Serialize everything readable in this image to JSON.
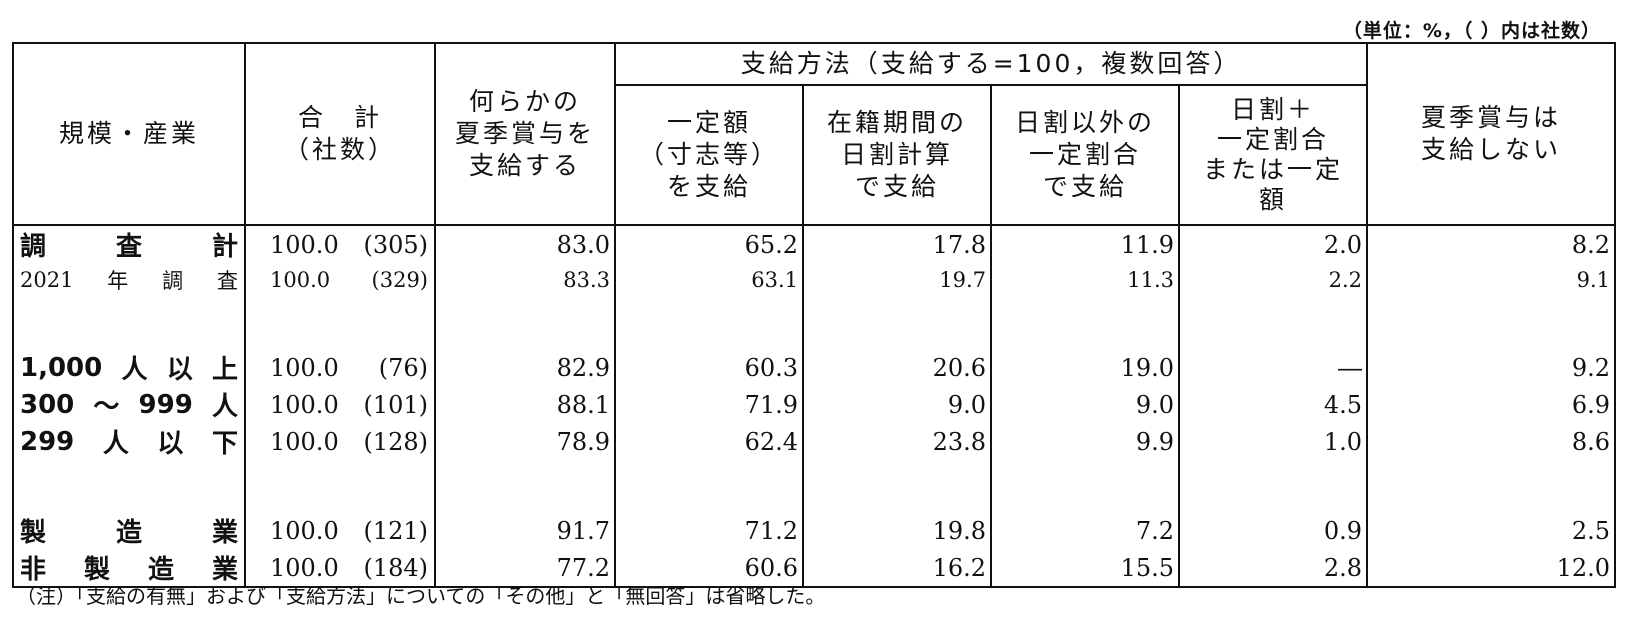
{
  "unit_note": "（単位：%，（ ）内は社数）",
  "headers": {
    "size_industry": "規模・産業",
    "total": "合　計\n（社数）",
    "any_pay": "何らかの\n夏季賞与を\n支給する",
    "method_group": "支給方法（支給する=100，複数回答）",
    "fixed": "一定額\n（寸志等）\nを支給",
    "daily": "在籍期間の\n日割計算\nで支給",
    "other_ratio": "日割以外の\n一定割合\nで支給",
    "daily_plus": "日割＋\n一定割合\nまたは一定\n額",
    "not_pay": "夏季賞与は\n支給しない"
  },
  "rows": [
    {
      "label": "調　　査　　計",
      "total": "100.0",
      "count": "(305)",
      "any": "83.0",
      "fixed": "65.2",
      "daily": "17.8",
      "other": "11.9",
      "daily_plus": "2.0",
      "none": "8.2"
    },
    {
      "label": "2021　年　調　査",
      "total": "100.0",
      "count": "(329)",
      "any": "83.3",
      "fixed": "63.1",
      "daily": "19.7",
      "other": "11.3",
      "daily_plus": "2.2",
      "none": "9.1"
    },
    {
      "label": "1,000　人　以　上",
      "total": "100.0",
      "count": "(76)",
      "any": "82.9",
      "fixed": "60.3",
      "daily": "20.6",
      "other": "19.0",
      "daily_plus": "―",
      "none": "9.2"
    },
    {
      "label": "300　～　999　人",
      "total": "100.0",
      "count": "(101)",
      "any": "88.1",
      "fixed": "71.9",
      "daily": "9.0",
      "other": "9.0",
      "daily_plus": "4.5",
      "none": "6.9"
    },
    {
      "label": "299　人　以　下",
      "total": "100.0",
      "count": "(128)",
      "any": "78.9",
      "fixed": "62.4",
      "daily": "23.8",
      "other": "9.9",
      "daily_plus": "1.0",
      "none": "8.6"
    },
    {
      "label": "製　　造　　業",
      "total": "100.0",
      "count": "(121)",
      "any": "91.7",
      "fixed": "71.2",
      "daily": "19.8",
      "other": "7.2",
      "daily_plus": "0.9",
      "none": "2.5"
    },
    {
      "label": "非　製　造　業",
      "total": "100.0",
      "count": "(184)",
      "any": "77.2",
      "fixed": "60.6",
      "daily": "16.2",
      "other": "15.5",
      "daily_plus": "2.8",
      "none": "12.0"
    }
  ],
  "note": "（注）「支給の有無」および「支給方法」についての「その他」と「無回答」は省略した。"
}
